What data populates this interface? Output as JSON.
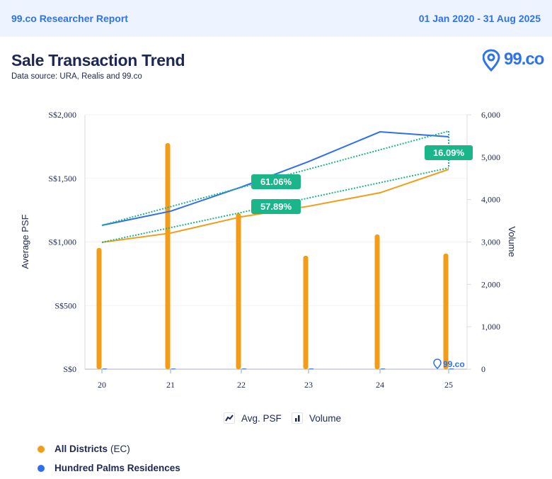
{
  "header": {
    "brand": "99.co Researcher Report",
    "date_range": "01 Jan 2020 - 31 Aug 2025"
  },
  "page": {
    "title": "Sale Transaction Trend",
    "source": "Data source: URA, Realis and 99.co",
    "logo_text": "99.co",
    "watermark_text": "99.co"
  },
  "colors": {
    "all_districts": "#f39c18",
    "hundred_palms": "#2e6ef0",
    "growth": "#1bb58a",
    "accent": "#2f72f0"
  },
  "metric_legend": {
    "items": [
      {
        "label": "Avg. PSF",
        "icon": "line-chart-icon"
      },
      {
        "label": "Volume",
        "icon": "bar-chart-icon"
      }
    ]
  },
  "series_legend": {
    "items": [
      {
        "name": "All Districts",
        "suffix": "(EC)",
        "color": "#f39c18"
      },
      {
        "name": "Hundred Palms Residences",
        "suffix": "",
        "color": "#2e6ef0"
      }
    ]
  },
  "chart_data": {
    "type": "bar+line",
    "title": "Sale Transaction Trend",
    "categories": [
      "20",
      "21",
      "22",
      "23",
      "24",
      "25"
    ],
    "y_left": {
      "label": "Average PSF",
      "range": [
        0,
        2000
      ],
      "ticks": [
        "S$0",
        "S$500",
        "S$1,000",
        "S$1,500",
        "S$2,000"
      ],
      "tick_values": [
        0,
        500,
        1000,
        1500,
        2000
      ]
    },
    "y_right": {
      "label": "Volume",
      "range": [
        0,
        6000
      ],
      "ticks": [
        "0",
        "1,000",
        "2,000",
        "3,000",
        "4,000",
        "5,000",
        "6,000"
      ],
      "tick_values": [
        0,
        1000,
        2000,
        3000,
        4000,
        5000,
        6000
      ]
    },
    "series": [
      {
        "name": "All Districts (EC)",
        "psf": [
          997,
          1070,
          1198,
          1281,
          1387,
          1571
        ],
        "volume": [
          2858,
          5331,
          3677,
          2674,
          3175,
          2724
        ]
      },
      {
        "name": "Hundred Palms Residences",
        "psf": [
          1131,
          1242,
          1432,
          1632,
          1866,
          1827
        ],
        "volume": [
          15,
          15,
          15,
          15,
          15,
          15
        ]
      }
    ],
    "growth_labels": [
      {
        "series": "Hundred Palms Residences",
        "label": "61.06%"
      },
      {
        "series": "All Districts (EC)",
        "label": "57.89%"
      },
      {
        "series": "difference",
        "label": "16.09%"
      }
    ],
    "grid": true,
    "legend": "bottom"
  }
}
